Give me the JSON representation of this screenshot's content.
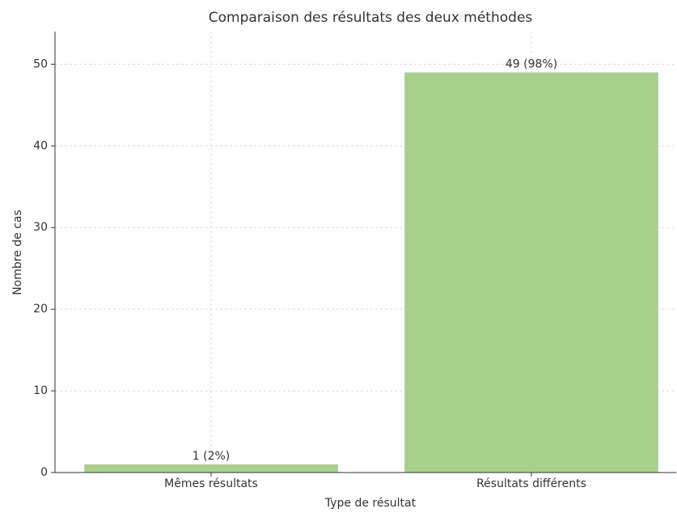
{
  "chart_data": {
    "type": "bar",
    "title": "Comparaison des résultats des deux méthodes",
    "xlabel": "Type de résultat",
    "ylabel": "Nombre de cas",
    "categories": [
      "Mêmes résultats",
      "Résultats différents"
    ],
    "values": [
      1,
      49
    ],
    "value_labels": [
      "1 (2%)",
      "49 (98%)"
    ],
    "color": "#a8d08d",
    "ylim": [
      0,
      54
    ],
    "yticks": [
      0,
      10,
      20,
      30,
      40,
      50
    ],
    "grid": true
  }
}
